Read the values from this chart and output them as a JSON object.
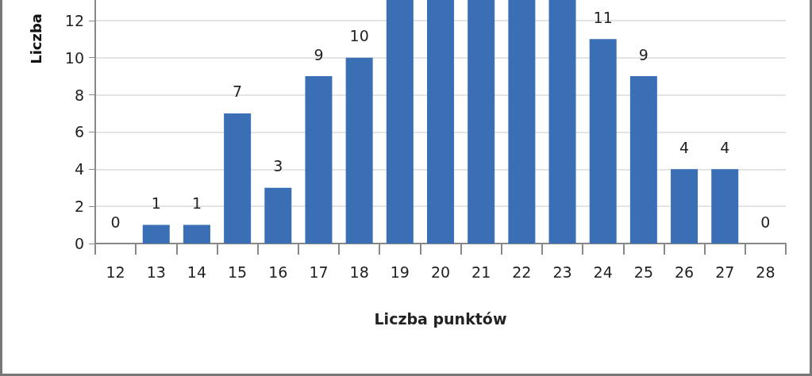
{
  "chart_data": {
    "type": "bar",
    "xlabel": "Liczba punktów",
    "ylabel": "Liczba",
    "categories": [
      "12",
      "13",
      "14",
      "15",
      "16",
      "17",
      "18",
      "19",
      "20",
      "21",
      "22",
      "23",
      "24",
      "25",
      "26",
      "27",
      "28"
    ],
    "values": [
      0,
      1,
      1,
      7,
      3,
      9,
      10,
      13.1,
      13.1,
      13.1,
      13.1,
      13.1,
      11,
      9,
      4,
      4,
      0
    ],
    "value_labels": [
      "0",
      "1",
      "1",
      "7",
      "3",
      "9",
      "10",
      null,
      null,
      null,
      null,
      null,
      "11",
      "9",
      "4",
      "4",
      "0"
    ],
    "color": "#3a6fb5",
    "ylim": [
      0,
      13.1
    ],
    "yticks": [
      0,
      2,
      4,
      6,
      8,
      10,
      12
    ],
    "grid": "y"
  }
}
